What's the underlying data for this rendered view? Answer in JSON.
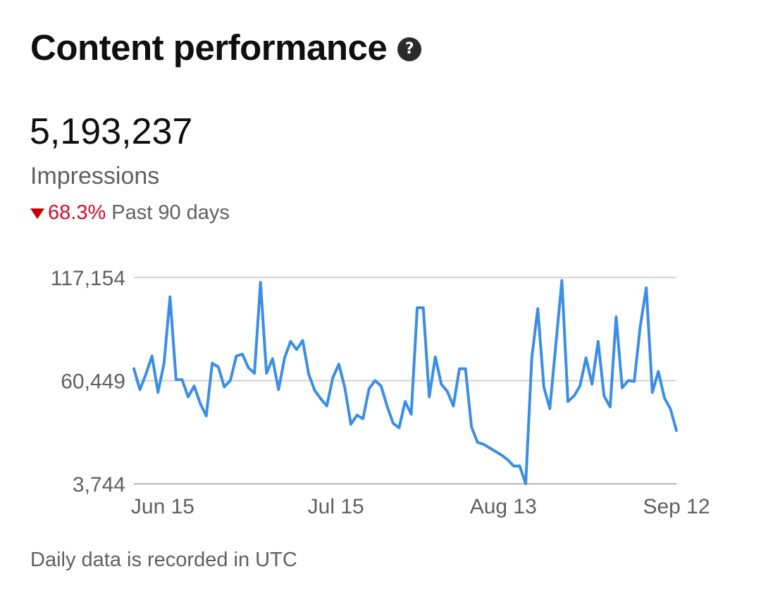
{
  "header": {
    "title": "Content performance",
    "help_icon": "question-circle-icon"
  },
  "metric": {
    "value": "5,193,237",
    "label": "Impressions",
    "change": "68.3%",
    "change_direction": "down",
    "period": "Past 90 days"
  },
  "colors": {
    "line": "#3b8ee5",
    "decrease": "#cc0e2b",
    "grid": "#c6c6c6",
    "axis_text": "#606060"
  },
  "chart_data": {
    "type": "line",
    "title": "",
    "xlabel": "",
    "ylabel": "",
    "ylim": [
      3744,
      117154
    ],
    "yticks": [
      "117,154",
      "60,449",
      "3,744"
    ],
    "yticks_values": [
      117154,
      60449,
      3744
    ],
    "xticks": [
      {
        "label": "Jun 15",
        "day": 5
      },
      {
        "label": "Jul 15",
        "day": 35
      },
      {
        "label": "Aug 13",
        "day": 64
      },
      {
        "label": "Sep 12",
        "day": 94
      }
    ],
    "x_domain": [
      0,
      94
    ],
    "series": [
      {
        "values": [
          67000,
          55500,
          64000,
          74000,
          54000,
          70000,
          106500,
          61000,
          61000,
          51500,
          57500,
          48000,
          41000,
          70000,
          68000,
          57000,
          60500,
          74000,
          75000,
          67500,
          64500,
          114500,
          64500,
          72500,
          55500,
          73000,
          82000,
          77500,
          82500,
          64000,
          55000,
          50500,
          46500,
          62000,
          69500,
          56500,
          36500,
          41500,
          39500,
          56000,
          60500,
          57500,
          46500,
          37000,
          34500,
          49000,
          42000,
          100500,
          100500,
          51500,
          73500,
          58500,
          54500,
          46500,
          67000,
          67000,
          35000,
          26500,
          25500,
          23500,
          21500,
          19500,
          17000,
          13500,
          13500,
          3744,
          73000,
          100000,
          57000,
          45000,
          80500,
          115500,
          49000,
          52000,
          57500,
          73000,
          58500,
          82000,
          52000,
          46000,
          95500,
          56500,
          60500,
          60000,
          90500,
          111500,
          54000,
          65500,
          51000,
          45000,
          33000
        ]
      }
    ]
  },
  "footer": {
    "note": "Daily data is recorded in UTC"
  }
}
